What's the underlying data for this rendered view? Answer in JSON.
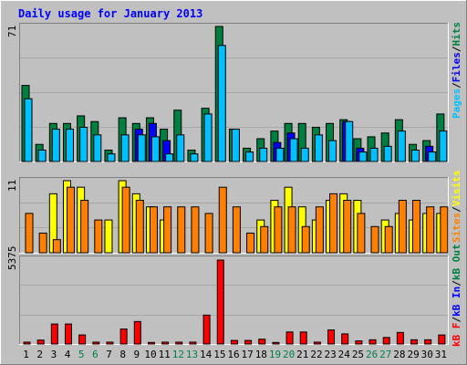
{
  "title": "Daily usage for January 2013",
  "colors": {
    "background": "#c0c0c0",
    "hits": "#008040",
    "files": "#00c0ff",
    "pages": "#0000ff",
    "visits": "#ffff00",
    "sites": "#ff8000",
    "kbytes_in": "#ff0000",
    "title_text": "#0000ff"
  },
  "legend_top": {
    "pages": "Pages",
    "files": "Files",
    "hits": "Hits",
    "sep1": "/",
    "sep2": "/"
  },
  "legend_mid": {
    "sites": "Sites",
    "visits": "Visits",
    "sep": "/"
  },
  "legend_bottom": {
    "kbf": "kB F",
    "kbin": "kB In",
    "kbout": "kB Out",
    "sep1": "/",
    "sep2": "/"
  },
  "chart_data": [
    {
      "type": "bar",
      "panel": "top",
      "ymax_label": "71",
      "ylim": [
        0,
        71
      ],
      "categories": [
        "1",
        "2",
        "3",
        "4",
        "5",
        "6",
        "7",
        "8",
        "9",
        "10",
        "11",
        "12",
        "13",
        "14",
        "15",
        "16",
        "17",
        "18",
        "19",
        "20",
        "21",
        "22",
        "23",
        "24",
        "25",
        "26",
        "27",
        "28",
        "29",
        "30",
        "31"
      ],
      "weekend_days": [
        "5",
        "6",
        "12",
        "13",
        "19",
        "20",
        "26",
        "27"
      ],
      "series": [
        {
          "name": "Hits",
          "values": [
            40,
            9,
            20,
            20,
            24,
            21,
            6,
            23,
            20,
            23,
            17,
            27,
            6,
            28,
            71,
            17,
            7,
            12,
            16,
            20,
            20,
            18,
            20,
            22,
            12,
            13,
            15,
            22,
            9,
            11,
            25
          ]
        },
        {
          "name": "Files",
          "values": [
            33,
            6,
            17,
            17,
            18,
            14,
            4,
            14,
            14,
            13,
            4,
            14,
            4,
            25,
            61,
            17,
            5,
            7,
            7,
            12,
            7,
            14,
            11,
            21,
            5,
            7,
            8,
            16,
            6,
            5,
            16
          ]
        },
        {
          "name": "Pages",
          "values": [
            0,
            0,
            0,
            0,
            0,
            0,
            0,
            0,
            17,
            20,
            11,
            0,
            0,
            0,
            0,
            0,
            0,
            0,
            10,
            15,
            0,
            0,
            0,
            21,
            7,
            0,
            0,
            0,
            0,
            8,
            0
          ]
        }
      ]
    },
    {
      "type": "bar",
      "panel": "middle",
      "ymax_label": "11",
      "ylim": [
        0,
        11
      ],
      "categories": [
        "1",
        "2",
        "3",
        "4",
        "5",
        "6",
        "7",
        "8",
        "9",
        "10",
        "11",
        "12",
        "13",
        "14",
        "15",
        "16",
        "17",
        "18",
        "19",
        "20",
        "21",
        "22",
        "23",
        "24",
        "25",
        "26",
        "27",
        "28",
        "29",
        "30",
        "31"
      ],
      "series": [
        {
          "name": "Visits",
          "values": [
            0,
            0,
            9,
            11,
            10,
            0,
            5,
            11,
            9,
            7,
            5,
            0,
            0,
            0,
            0,
            0,
            0,
            5,
            8,
            10,
            7,
            5,
            8,
            9,
            8,
            0,
            5,
            6,
            5,
            6,
            6
          ]
        },
        {
          "name": "Sites",
          "values": [
            6,
            3,
            2,
            10,
            8,
            5,
            0,
            10,
            8,
            7,
            7,
            7,
            7,
            6,
            10,
            7,
            3,
            4,
            7,
            7,
            4,
            7,
            9,
            8,
            6,
            4,
            4,
            8,
            8,
            7,
            7
          ]
        }
      ]
    },
    {
      "type": "bar",
      "panel": "bottom",
      "ymax_label": "5375",
      "ylim": [
        0,
        5375
      ],
      "categories": [
        "1",
        "2",
        "3",
        "4",
        "5",
        "6",
        "7",
        "8",
        "9",
        "10",
        "11",
        "12",
        "13",
        "14",
        "15",
        "16",
        "17",
        "18",
        "19",
        "20",
        "21",
        "22",
        "23",
        "24",
        "25",
        "26",
        "27",
        "28",
        "29",
        "30",
        "31"
      ],
      "series": [
        {
          "name": "kB F",
          "values": [
            120,
            250,
            1280,
            1280,
            580,
            120,
            120,
            960,
            1440,
            100,
            120,
            120,
            120,
            1850,
            5375,
            230,
            230,
            310,
            100,
            770,
            770,
            120,
            900,
            650,
            200,
            270,
            420,
            740,
            270,
            270,
            580
          ]
        }
      ]
    }
  ]
}
